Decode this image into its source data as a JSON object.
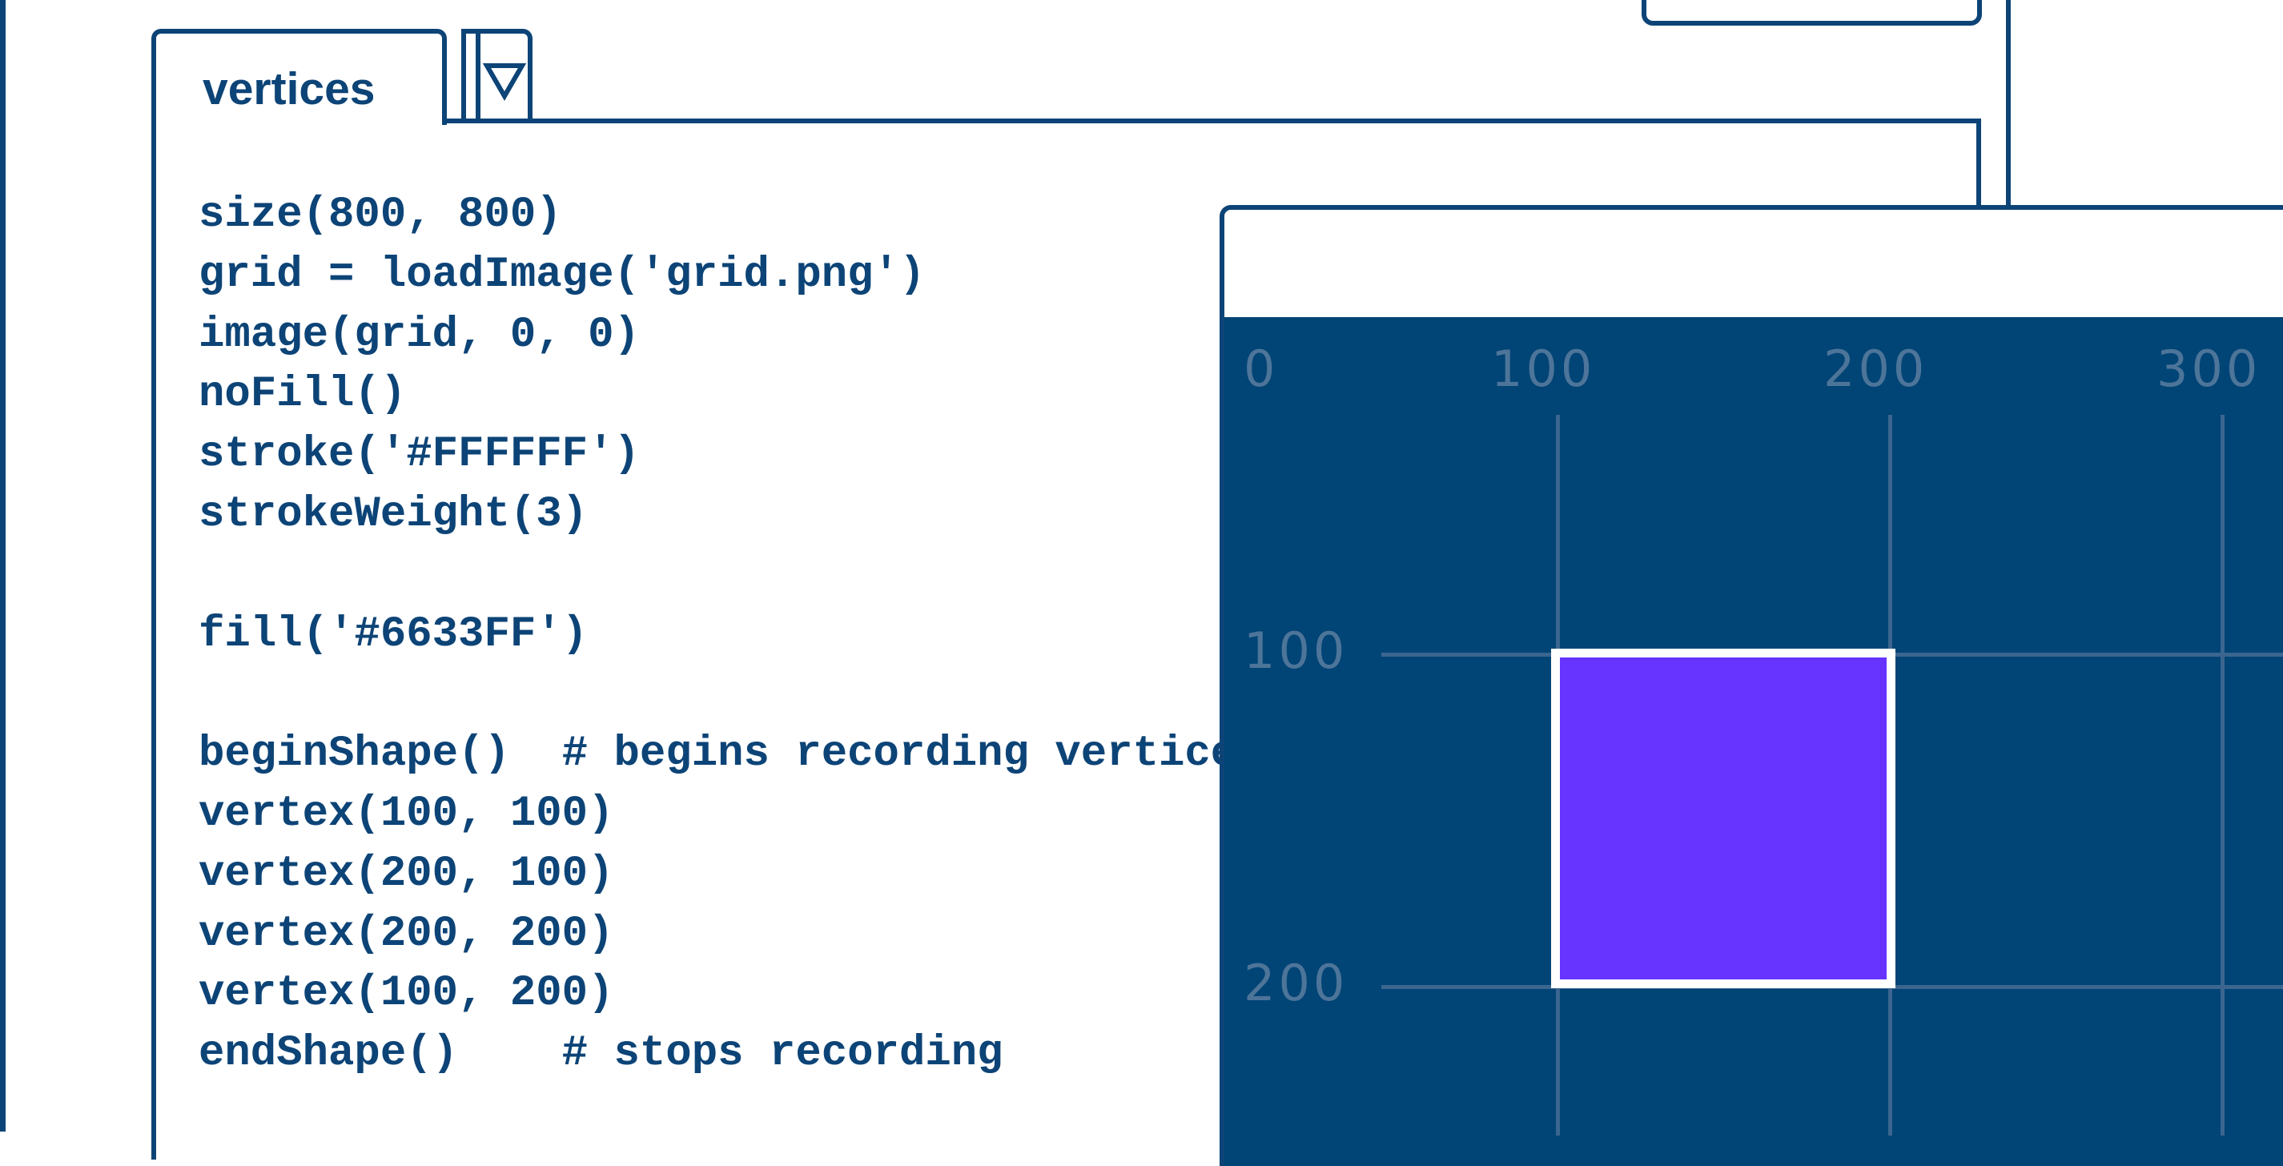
{
  "tab": {
    "label": "vertices"
  },
  "code_lines": [
    "size(800, 800)",
    "grid = loadImage('grid.png')",
    "image(grid, 0, 0)",
    "noFill()",
    "stroke('#FFFFFF')",
    "strokeWeight(3)",
    "",
    "fill('#6633FF')",
    "",
    "beginShape()  # begins recording vertices",
    "vertex(100, 100)",
    "vertex(200, 100)",
    "vertex(200, 200)",
    "vertex(100, 200)",
    "endShape()    # stops recording"
  ],
  "canvas": {
    "x_ticks": [
      "0",
      "100",
      "200",
      "300"
    ],
    "y_ticks": [
      "100",
      "200"
    ],
    "background": "#014476",
    "grid_color": "#3b6690",
    "shape_fill": "#6633FF",
    "shape_stroke": "#FFFFFF"
  },
  "icons": {
    "dropdown": "triangle-down-icon"
  }
}
